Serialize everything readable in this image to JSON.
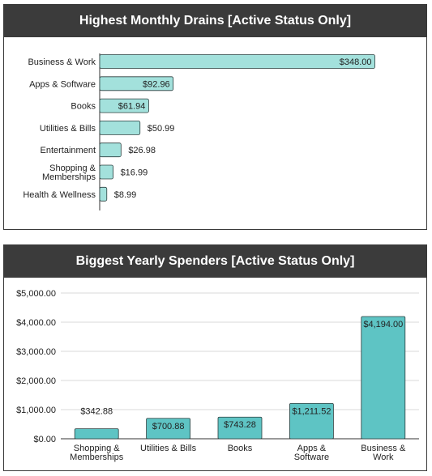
{
  "colors": {
    "bar_monthly": "#a3e1dc",
    "bar_yearly": "#5ec4c4",
    "bar_stroke": "#2c3e3e",
    "header_bg": "#3b3b3b",
    "grid": "#d9d9d9"
  },
  "chart_data": [
    {
      "type": "bar",
      "orientation": "horizontal",
      "title": "Highest Monthly Drains [Active Status Only]",
      "categories": [
        [
          "Business & Work"
        ],
        [
          "Apps & Software"
        ],
        [
          "Books"
        ],
        [
          "Utilities & Bills"
        ],
        [
          "Entertainment"
        ],
        [
          "Shopping &",
          "Memberships"
        ],
        [
          "Health & Wellness"
        ]
      ],
      "values": [
        348.0,
        92.96,
        61.94,
        50.99,
        26.98,
        16.99,
        8.99
      ],
      "data_labels": [
        "$348.00",
        "$92.96",
        "$61.94",
        "$50.99",
        "$26.98",
        "$16.99",
        "$8.99"
      ],
      "xlim": [
        0,
        410
      ],
      "grid": false
    },
    {
      "type": "bar",
      "orientation": "vertical",
      "title": "Biggest Yearly Spenders [Active Status Only]",
      "categories": [
        [
          "Shopping &",
          "Memberships"
        ],
        [
          "Utilities & Bills"
        ],
        [
          "Books"
        ],
        [
          "Apps &",
          "Software"
        ],
        [
          "Business &",
          "Work"
        ]
      ],
      "values": [
        342.88,
        700.88,
        743.28,
        1211.52,
        4194.0
      ],
      "data_labels": [
        "$342.88",
        "$700.88",
        "$743.28",
        "$1,211.52",
        "$4,194.00"
      ],
      "ylim": [
        0,
        5000
      ],
      "yticks": [
        0,
        1000,
        2000,
        3000,
        4000,
        5000
      ],
      "ytick_labels": [
        "$0.00",
        "$1,000.00",
        "$2,000.00",
        "$3,000.00",
        "$4,000.00",
        "$5,000.00"
      ],
      "grid": true
    }
  ]
}
